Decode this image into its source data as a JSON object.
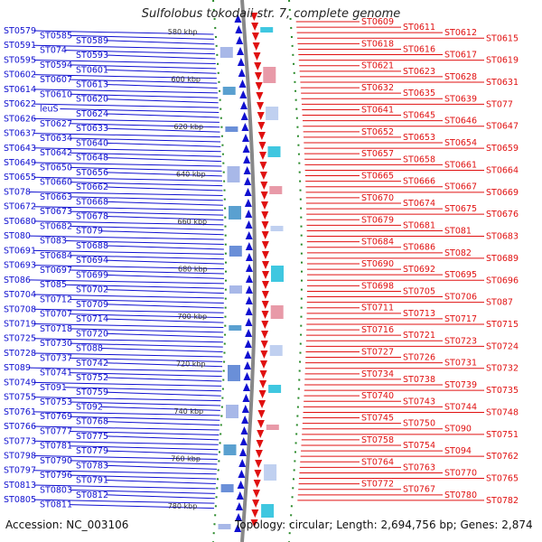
{
  "title": "Sulfolobus tokodaii str. 7, complete genome",
  "footer": {
    "accession": "Accession: NC_003106",
    "summary": "Topology: circular; Length: 2,694,756 bp; Genes: 2,874"
  },
  "scale_labels": [
    "580 kbp",
    "600 kbp",
    "620 kbp",
    "640 kbp",
    "660 kbp",
    "680 kbp",
    "700 kbp",
    "720 kbp",
    "740 kbp",
    "760 kbp",
    "780 kbp"
  ],
  "colors": {
    "forward_strand": "#1010d0",
    "reverse_strand": "#e01010",
    "backbone": "#888888",
    "tick": "#2a8a2a"
  },
  "forward_genes": [
    "ST0579",
    "ST0585",
    "ST0589",
    "ST0591",
    "ST074",
    "ST0593",
    "ST0595",
    "ST0594",
    "ST0601",
    "ST0602",
    "ST0607",
    "ST0613",
    "ST0614",
    "ST0610",
    "ST0620",
    "ST0622",
    "leuS",
    "ST0624",
    "ST0626",
    "ST0627",
    "ST0633",
    "ST0637",
    "ST0634",
    "ST0640",
    "ST0643",
    "ST0642",
    "ST0648",
    "ST0649",
    "ST0650",
    "ST0656",
    "ST0655",
    "ST0660",
    "ST0662",
    "ST078",
    "ST0663",
    "ST0668",
    "ST0672",
    "ST0673",
    "ST0678",
    "ST0680",
    "ST0682",
    "ST079",
    "ST080",
    "ST083",
    "ST0688",
    "ST0691",
    "ST0684",
    "ST0694",
    "ST0693",
    "ST0697",
    "ST0699",
    "ST086",
    "ST085",
    "ST0702",
    "ST0704",
    "ST0712",
    "ST0709",
    "ST0708",
    "ST0707",
    "ST0714",
    "ST0719",
    "ST0718",
    "ST0720",
    "ST0725",
    "ST0730",
    "ST088",
    "ST0728",
    "ST0737",
    "ST0742",
    "ST089",
    "ST0741",
    "ST0752",
    "ST0749",
    "ST091",
    "ST0759",
    "ST0755",
    "ST0753",
    "ST092",
    "ST0761",
    "ST0769",
    "ST0768",
    "ST0766",
    "ST0777",
    "ST0775",
    "ST0773",
    "ST0781",
    "ST0779",
    "ST0798",
    "ST0790",
    "ST0783",
    "ST0797",
    "ST0796",
    "ST0791",
    "ST0813",
    "ST0803",
    "ST0812",
    "ST0805",
    "ST0811"
  ],
  "reverse_genes": [
    "ST0609",
    "ST0611",
    "ST0612",
    "ST0615",
    "ST0618",
    "ST0616",
    "ST0617",
    "ST0619",
    "ST0621",
    "ST0623",
    "ST0628",
    "ST0631",
    "ST0632",
    "ST0635",
    "ST0639",
    "ST077",
    "ST0641",
    "ST0645",
    "ST0646",
    "ST0647",
    "ST0652",
    "ST0653",
    "ST0654",
    "ST0659",
    "ST0657",
    "ST0658",
    "ST0661",
    "ST0664",
    "ST0665",
    "ST0666",
    "ST0667",
    "ST0669",
    "ST0670",
    "ST0674",
    "ST0675",
    "ST0676",
    "ST0679",
    "ST0681",
    "ST081",
    "ST0683",
    "ST0684",
    "ST0686",
    "ST082",
    "ST0689",
    "ST0690",
    "ST0692",
    "ST0695",
    "ST0696",
    "ST0698",
    "ST0705",
    "ST0706",
    "ST087",
    "ST0711",
    "ST0713",
    "ST0717",
    "ST0715",
    "ST0716",
    "ST0721",
    "ST0723",
    "ST0724",
    "ST0727",
    "ST0726",
    "ST0731",
    "ST0732",
    "ST0734",
    "ST0738",
    "ST0739",
    "ST0735",
    "ST0740",
    "ST0743",
    "ST0744",
    "ST0748",
    "ST0745",
    "ST0750",
    "ST090",
    "ST0751",
    "ST0758",
    "ST0754",
    "ST094",
    "ST0762",
    "ST0764",
    "ST0763",
    "ST0770",
    "ST0765",
    "ST0772",
    "ST0767",
    "ST0780",
    "ST0782"
  ]
}
